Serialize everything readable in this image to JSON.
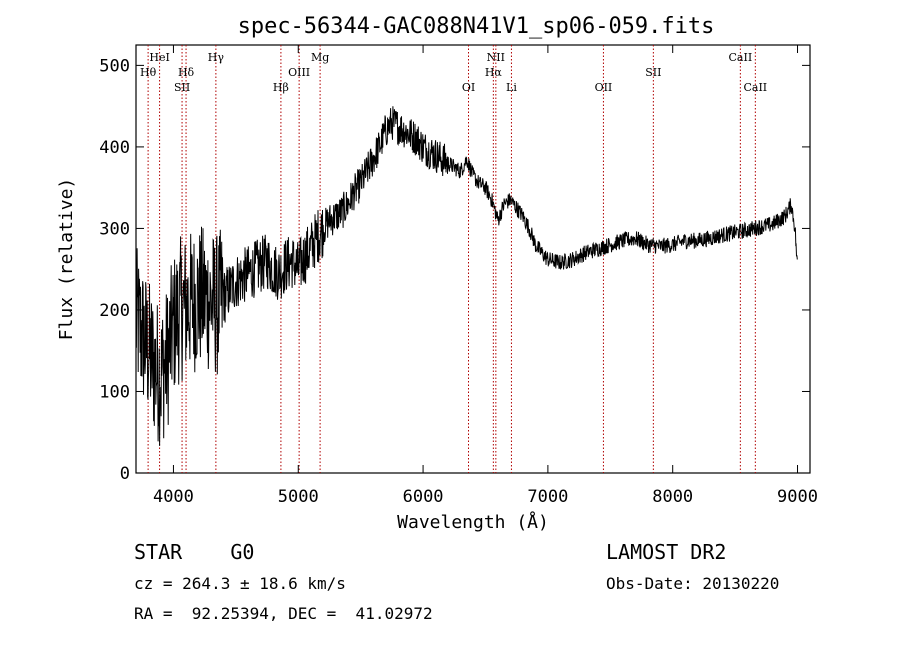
{
  "chart_data": {
    "type": "line",
    "title": "spec-56344-GAC088N41V1_sp06-059.fits",
    "xlabel": "Wavelength (Å)",
    "ylabel": "Flux (relative)",
    "xlim": [
      3700,
      9100
    ],
    "ylim": [
      0,
      525
    ],
    "xticks": [
      4000,
      5000,
      6000,
      7000,
      8000,
      9000
    ],
    "yticks": [
      0,
      100,
      200,
      300,
      400,
      500
    ],
    "series": [
      {
        "x": [
          3700,
          3750,
          3800,
          3850,
          3900,
          3950,
          4000,
          4050,
          4100,
          4150,
          4200,
          4250,
          4300,
          4350,
          4400,
          4450,
          4500,
          4550,
          4600,
          4650,
          4700,
          4750,
          4800,
          4850,
          4900,
          4950,
          5000,
          5050,
          5100,
          5150,
          5200,
          5250,
          5300,
          5350,
          5400,
          5450,
          5500,
          5550,
          5600,
          5650,
          5700,
          5750,
          5800,
          5850,
          5900,
          5950,
          6000,
          6050,
          6100,
          6150,
          6200,
          6250,
          6300,
          6350,
          6400,
          6450,
          6500,
          6550,
          6600,
          6650,
          6700,
          6750,
          6800,
          6850,
          6900,
          6950,
          7000,
          7100,
          7200,
          7300,
          7400,
          7500,
          7600,
          7700,
          7800,
          7900,
          8000,
          8100,
          8200,
          8300,
          8400,
          8500,
          8600,
          8700,
          8800,
          8900,
          8950,
          8980,
          9000
        ],
        "y": [
          190,
          170,
          150,
          130,
          120,
          140,
          180,
          200,
          205,
          210,
          215,
          215,
          210,
          205,
          215,
          225,
          235,
          240,
          245,
          250,
          255,
          260,
          250,
          245,
          255,
          260,
          250,
          265,
          275,
          290,
          300,
          310,
          315,
          320,
          330,
          345,
          355,
          370,
          385,
          400,
          420,
          430,
          425,
          420,
          415,
          410,
          400,
          395,
          390,
          385,
          380,
          375,
          370,
          385,
          365,
          355,
          350,
          335,
          310,
          330,
          335,
          325,
          315,
          300,
          280,
          270,
          262,
          258,
          262,
          270,
          275,
          280,
          285,
          288,
          280,
          278,
          280,
          285,
          285,
          288,
          292,
          295,
          298,
          302,
          305,
          315,
          330,
          300,
          250
        ]
      }
    ],
    "lines": [
      {
        "label": "Hθ",
        "x": 3797
      },
      {
        "label": "HeI",
        "x": 3889
      },
      {
        "label": "Hδ",
        "x": 4101
      },
      {
        "label": "SII",
        "x": 4069
      },
      {
        "label": "Hγ",
        "x": 4340
      },
      {
        "label": "Hβ",
        "x": 4861
      },
      {
        "label": "OIII",
        "x": 5007
      },
      {
        "label": "Mg",
        "x": 5175
      },
      {
        "label": "OI",
        "x": 6364
      },
      {
        "label": "NII",
        "x": 6583
      },
      {
        "label": "Hα",
        "x": 6563
      },
      {
        "label": "Li",
        "x": 6708
      },
      {
        "label": "OII",
        "x": 7445
      },
      {
        "label": "SII",
        "x": 7845
      },
      {
        "label": "CaII",
        "x": 8542
      },
      {
        "label": "CaII",
        "x": 8662
      }
    ]
  },
  "info": {
    "left_line1": "STAR    G0",
    "left_line2": "cz = 264.3 ± 18.6 km/s",
    "left_line3": "RA =  92.25394, DEC =  41.02972",
    "right_line1": "LAMOST DR2",
    "right_line2": "Obs-Date: 20130220"
  }
}
